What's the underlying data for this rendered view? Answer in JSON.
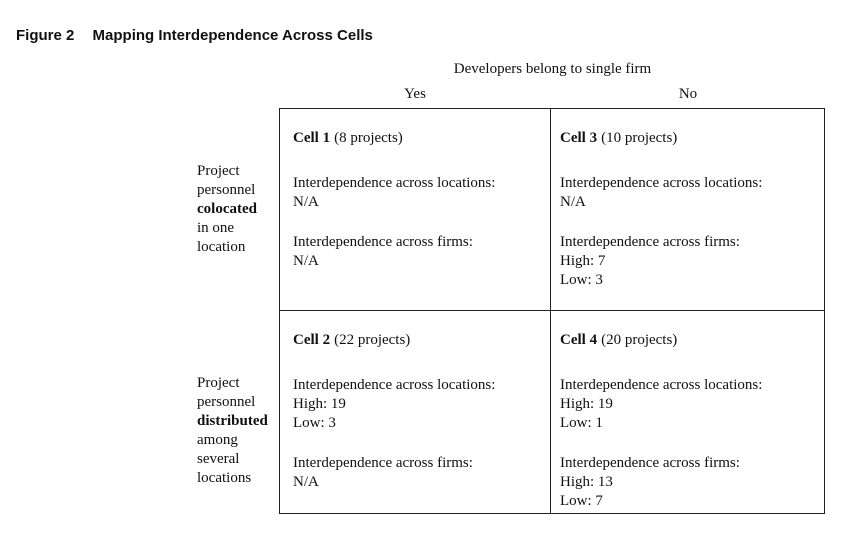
{
  "figure": {
    "number": "Figure 2",
    "title": "Mapping Interdependence Across Cells"
  },
  "columns": {
    "header": "Developers belong to single firm",
    "yes": "Yes",
    "no": "No"
  },
  "rows": {
    "colocated": {
      "line1": "Project",
      "line2": "personnel",
      "bold": "colocated",
      "line4": "in one",
      "line5": "location"
    },
    "distributed": {
      "line1": "Project",
      "line2": "personnel",
      "bold": "distributed",
      "line4": "among",
      "line5": "several",
      "line6": "locations"
    }
  },
  "cells": {
    "c1": {
      "name": "Cell 1",
      "count": "(8 projects)",
      "loc_label": "Interdependence across locations:",
      "loc_value": "N/A",
      "firm_label": "Interdependence across firms:",
      "firm_value": "N/A"
    },
    "c2": {
      "name": "Cell 2",
      "count": "(22 projects)",
      "loc_label": "Interdependence across locations:",
      "loc_high": "High: 19",
      "loc_low": "Low: 3",
      "firm_label": "Interdependence across firms:",
      "firm_value": "N/A"
    },
    "c3": {
      "name": "Cell 3",
      "count": "(10 projects)",
      "loc_label": "Interdependence across locations:",
      "loc_value": "N/A",
      "firm_label": "Interdependence across firms:",
      "firm_high": "High: 7",
      "firm_low": "Low: 3"
    },
    "c4": {
      "name": "Cell 4",
      "count": "(20 projects)",
      "loc_label": "Interdependence across locations:",
      "loc_high": "High: 19",
      "loc_low": "Low: 1",
      "firm_label": "Interdependence across firms:",
      "firm_high": "High: 13",
      "firm_low": "Low: 7"
    }
  }
}
